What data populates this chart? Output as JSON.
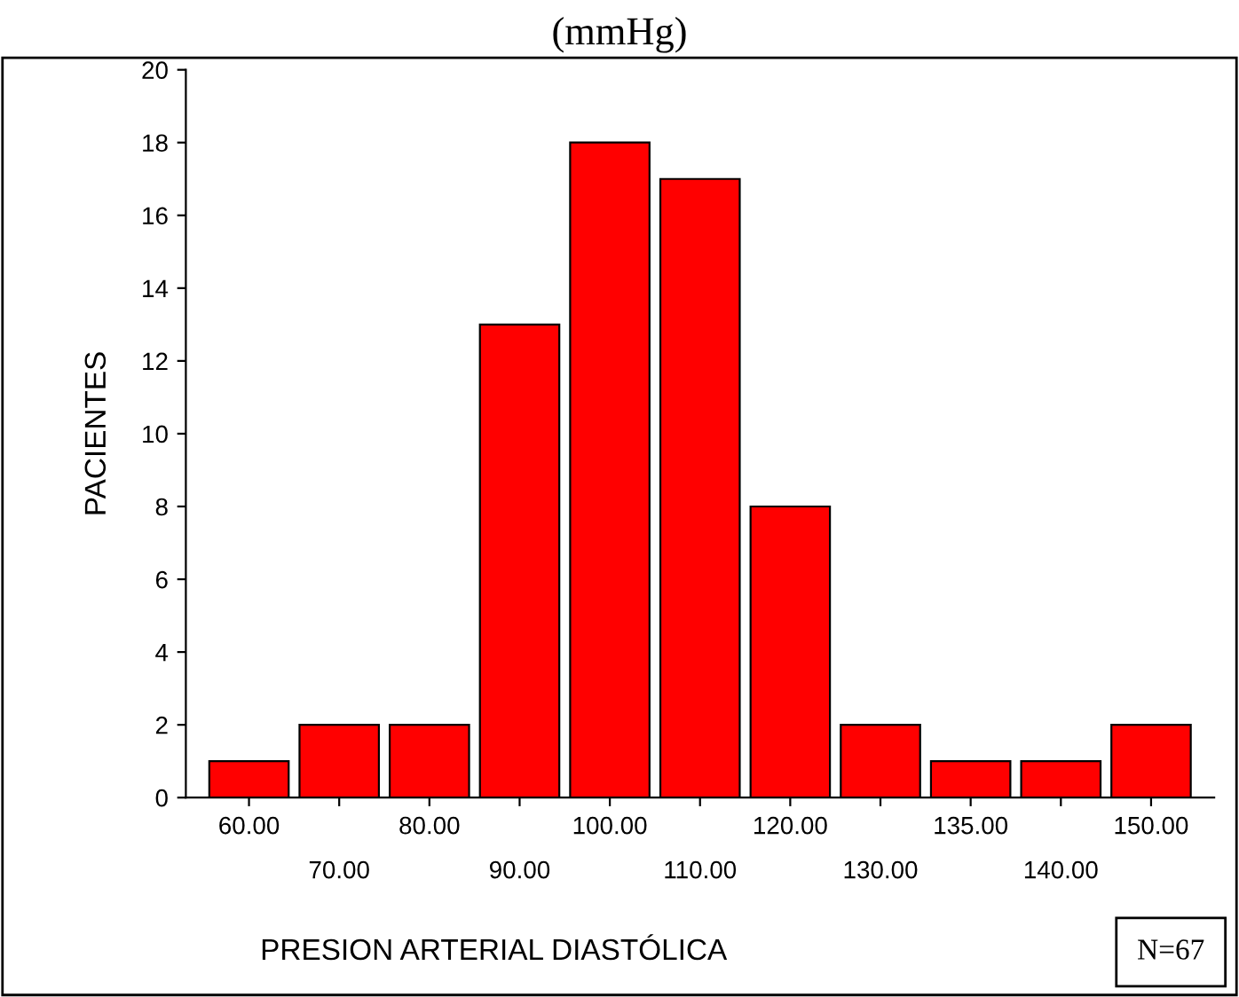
{
  "chart_data": {
    "type": "bar",
    "title": "(mmHg)",
    "xlabel": "PRESION ARTERIAL DIASTÓLICA",
    "ylabel": "PACIENTES",
    "categories": [
      "60.00",
      "70.00",
      "80.00",
      "90.00",
      "100.00",
      "110.00",
      "120.00",
      "130.00",
      "135.00",
      "140.00",
      "150.00"
    ],
    "values": [
      1,
      2,
      2,
      13,
      18,
      17,
      8,
      2,
      1,
      1,
      2
    ],
    "color": "#ff0000",
    "ylim": [
      0,
      20
    ],
    "yticks": [
      0,
      2,
      4,
      6,
      8,
      10,
      12,
      14,
      16,
      18,
      20
    ],
    "grid": false,
    "annotations": [
      "N=67"
    ]
  }
}
